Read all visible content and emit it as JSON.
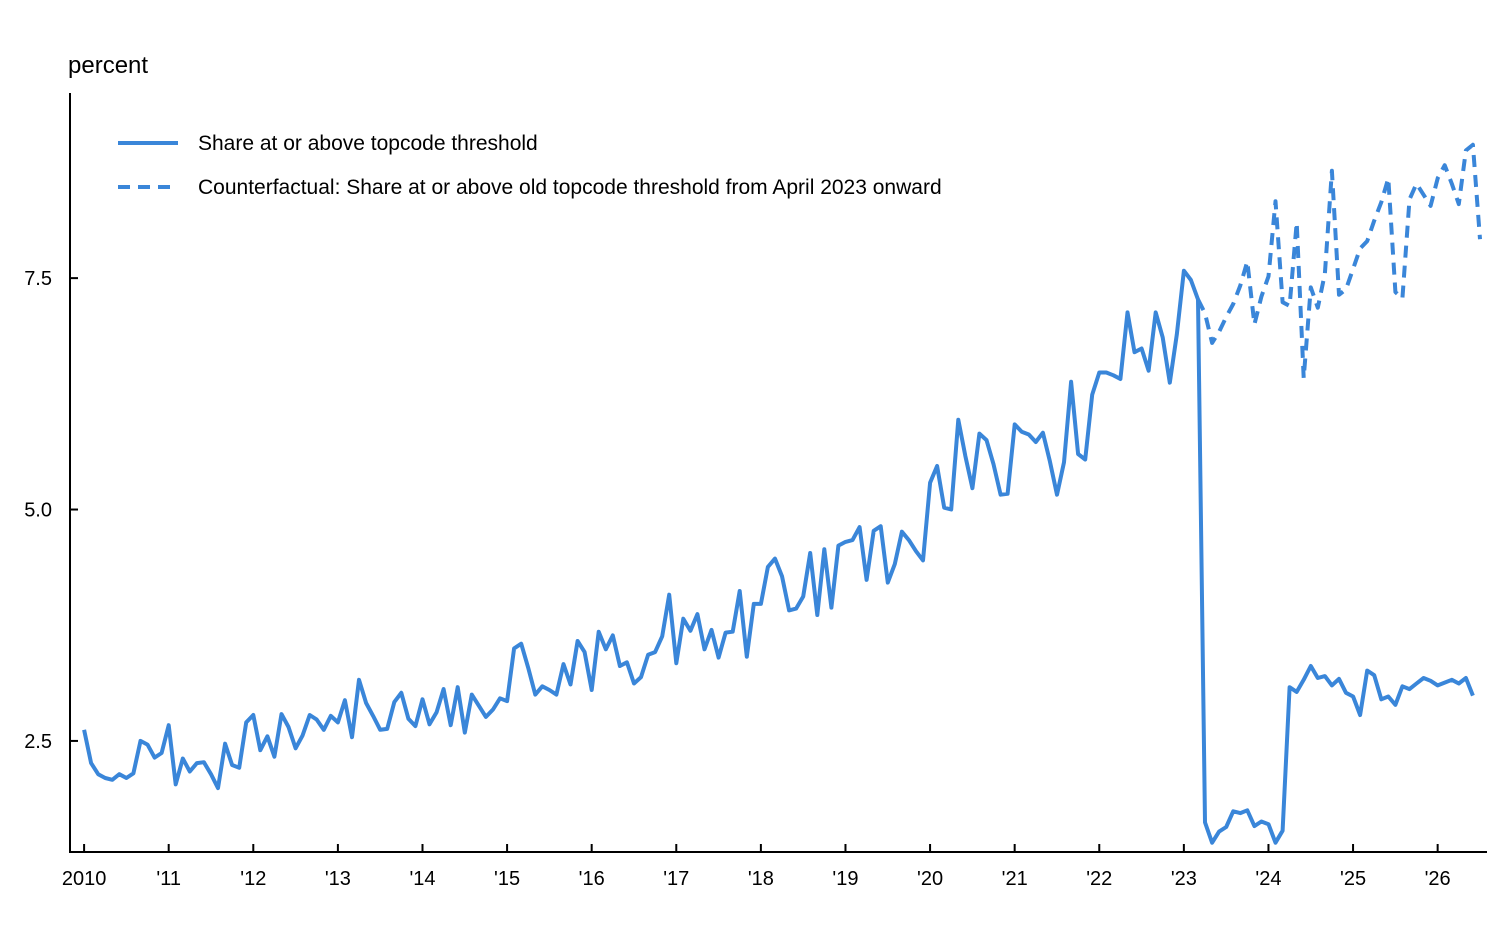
{
  "chart_data": {
    "type": "line",
    "ylabel": "percent",
    "xlabel": "",
    "ylim": [
      1.3,
      9.5
    ],
    "xlim": [
      "2009-11",
      "2026-08"
    ],
    "yticks": [
      2.5,
      5.0,
      7.5
    ],
    "ytick_labels": [
      "2.5",
      "5.0",
      "7.5"
    ],
    "xticks": [
      "2010-01",
      "2011-01",
      "2012-01",
      "2013-01",
      "2014-01",
      "2015-01",
      "2016-01",
      "2017-01",
      "2018-01",
      "2019-01",
      "2020-01",
      "2021-01",
      "2022-01",
      "2023-01",
      "2024-01",
      "2025-01",
      "2026-01"
    ],
    "xtick_labels": [
      "2010",
      "'11",
      "'12",
      "'13",
      "'14",
      "'15",
      "'16",
      "'17",
      "'18",
      "'19",
      "'20",
      "'21",
      "'22",
      "'23",
      "'24",
      "'25",
      "'26"
    ],
    "grid": false,
    "legend_position": "top-left",
    "colors": {
      "series": "#3a86d9"
    },
    "series": [
      {
        "name": "Share at or above topcode threshold",
        "style": "solid",
        "start": "2010-01",
        "frequency": "monthly",
        "values": [
          2.62,
          2.26,
          2.14,
          2.1,
          2.08,
          2.14,
          2.1,
          2.15,
          2.5,
          2.46,
          2.32,
          2.37,
          2.67,
          2.03,
          2.31,
          2.17,
          2.26,
          2.27,
          2.14,
          1.99,
          2.47,
          2.24,
          2.21,
          2.7,
          2.78,
          2.4,
          2.55,
          2.33,
          2.79,
          2.65,
          2.42,
          2.56,
          2.78,
          2.73,
          2.62,
          2.77,
          2.7,
          2.94,
          2.54,
          3.16,
          2.91,
          2.77,
          2.62,
          2.63,
          2.92,
          3.02,
          2.74,
          2.66,
          2.95,
          2.68,
          2.81,
          3.06,
          2.67,
          3.08,
          2.59,
          3.0,
          2.88,
          2.76,
          2.84,
          2.96,
          2.93,
          3.5,
          3.55,
          3.29,
          3.0,
          3.09,
          3.05,
          3.0,
          3.33,
          3.11,
          3.58,
          3.46,
          3.05,
          3.68,
          3.49,
          3.64,
          3.31,
          3.35,
          3.12,
          3.19,
          3.43,
          3.46,
          3.63,
          4.08,
          3.34,
          3.82,
          3.69,
          3.87,
          3.49,
          3.7,
          3.4,
          3.67,
          3.68,
          4.12,
          3.41,
          3.98,
          3.98,
          4.38,
          4.47,
          4.28,
          3.91,
          3.93,
          4.06,
          4.53,
          3.86,
          4.57,
          3.94,
          4.61,
          4.65,
          4.67,
          4.81,
          4.24,
          4.77,
          4.82,
          4.21,
          4.41,
          4.76,
          4.67,
          4.55,
          4.45,
          5.29,
          5.47,
          5.02,
          5.0,
          5.97,
          5.58,
          5.23,
          5.82,
          5.75,
          5.49,
          5.16,
          5.17,
          5.92,
          5.84,
          5.81,
          5.73,
          5.83,
          5.52,
          5.16,
          5.51,
          6.38,
          5.6,
          5.54,
          6.24,
          6.48,
          6.48,
          6.45,
          6.41,
          7.13,
          6.7,
          6.74,
          6.5,
          7.13,
          6.86,
          6.37,
          6.89,
          7.58,
          7.48,
          7.27,
          1.62,
          1.4,
          1.52,
          1.57,
          1.74,
          1.72,
          1.75,
          1.58,
          1.63,
          1.6,
          1.4,
          1.53,
          3.08,
          3.03,
          3.16,
          3.31,
          3.18,
          3.2,
          3.1,
          3.17,
          3.02,
          2.98,
          2.78,
          3.26,
          3.21,
          2.95,
          2.98,
          2.89,
          3.09,
          3.06,
          3.12,
          3.18,
          3.15,
          3.1,
          3.13,
          3.16,
          3.12,
          3.18,
          2.99
        ]
      },
      {
        "name": "Counterfactual: Share at or above old topcode threshold from April 2023 onward",
        "style": "dashed",
        "start": "2023-03",
        "frequency": "monthly",
        "values": [
          7.27,
          7.12,
          6.8,
          6.92,
          7.08,
          7.22,
          7.42,
          7.68,
          7.0,
          7.3,
          7.52,
          8.33,
          7.24,
          7.2,
          8.1,
          6.42,
          7.4,
          7.18,
          7.55,
          8.66,
          7.32,
          7.38,
          7.6,
          7.82,
          7.9,
          8.12,
          8.32,
          8.58,
          7.35,
          7.28,
          8.35,
          8.52,
          8.4,
          8.28,
          8.58,
          8.72,
          8.52,
          8.3,
          8.88,
          8.94,
          7.92
        ]
      }
    ]
  }
}
